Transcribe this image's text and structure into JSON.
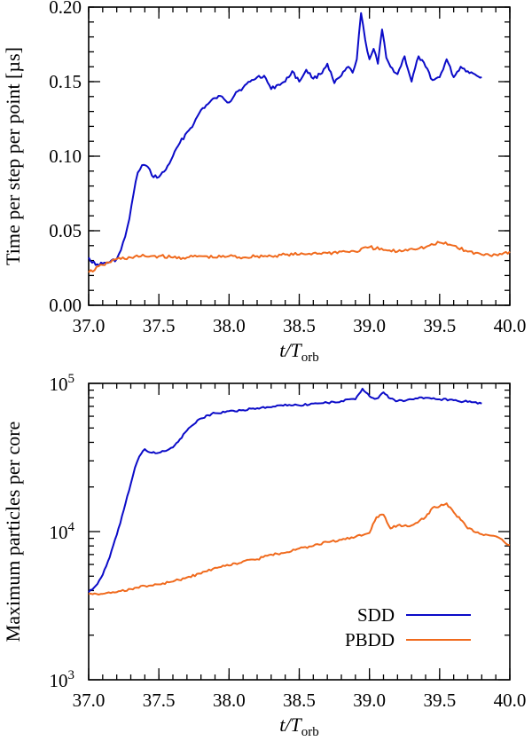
{
  "chart_data": [
    {
      "type": "line",
      "xlabel": {
        "main": "t/T",
        "sub": "orb"
      },
      "ylabel": "Time per step per point [µs]",
      "xlim": [
        37.0,
        40.0
      ],
      "ylim": [
        0.0,
        0.2
      ],
      "yscale": "linear",
      "xticks": [
        {
          "v": 37.0,
          "label": "37.0"
        },
        {
          "v": 37.5,
          "label": "37.5"
        },
        {
          "v": 38.0,
          "label": "38.0"
        },
        {
          "v": 38.5,
          "label": "38.5"
        },
        {
          "v": 39.0,
          "label": "39.0"
        },
        {
          "v": 39.5,
          "label": "39.5"
        },
        {
          "v": 40.0,
          "label": "40.0"
        }
      ],
      "yticks": [
        {
          "v": 0.0,
          "label": "0.00"
        },
        {
          "v": 0.05,
          "label": "0.05"
        },
        {
          "v": 0.1,
          "label": "0.10"
        },
        {
          "v": 0.15,
          "label": "0.15"
        },
        {
          "v": 0.2,
          "label": "0.20"
        }
      ],
      "series": [
        {
          "name": "SDD",
          "color": "#0b0bc8",
          "x": [
            37.0,
            37.05,
            37.1,
            37.15,
            37.2,
            37.23,
            37.26,
            37.29,
            37.32,
            37.35,
            37.38,
            37.42,
            37.45,
            37.5,
            37.55,
            37.6,
            37.65,
            37.7,
            37.75,
            37.8,
            37.85,
            37.9,
            37.95,
            38.0,
            38.05,
            38.1,
            38.15,
            38.2,
            38.25,
            38.3,
            38.35,
            38.4,
            38.45,
            38.5,
            38.55,
            38.6,
            38.65,
            38.7,
            38.75,
            38.8,
            38.85,
            38.88,
            38.91,
            38.94,
            38.97,
            39.0,
            39.03,
            39.06,
            39.09,
            39.12,
            39.15,
            39.2,
            39.25,
            39.3,
            39.35,
            39.4,
            39.45,
            39.5,
            39.55,
            39.6,
            39.65,
            39.7,
            39.75,
            39.8
          ],
          "y": [
            0.032,
            0.027,
            0.028,
            0.029,
            0.031,
            0.037,
            0.046,
            0.058,
            0.075,
            0.089,
            0.094,
            0.093,
            0.087,
            0.086,
            0.091,
            0.1,
            0.109,
            0.116,
            0.122,
            0.131,
            0.135,
            0.139,
            0.14,
            0.136,
            0.143,
            0.146,
            0.15,
            0.153,
            0.154,
            0.145,
            0.148,
            0.15,
            0.157,
            0.15,
            0.158,
            0.152,
            0.155,
            0.162,
            0.149,
            0.154,
            0.16,
            0.156,
            0.165,
            0.196,
            0.178,
            0.165,
            0.172,
            0.162,
            0.185,
            0.166,
            0.16,
            0.155,
            0.167,
            0.15,
            0.167,
            0.16,
            0.151,
            0.153,
            0.165,
            0.153,
            0.16,
            0.157,
            0.155,
            0.153
          ]
        },
        {
          "name": "PBDD",
          "color": "#f06a1d",
          "x": [
            37.0,
            37.1,
            37.2,
            37.3,
            37.4,
            37.5,
            37.6,
            37.7,
            37.8,
            37.9,
            38.0,
            38.1,
            38.2,
            38.3,
            38.4,
            38.5,
            38.6,
            38.7,
            38.8,
            38.9,
            39.0,
            39.1,
            39.2,
            39.3,
            39.4,
            39.5,
            39.6,
            39.7,
            39.8,
            39.9,
            40.0
          ],
          "y": [
            0.022,
            0.027,
            0.031,
            0.032,
            0.033,
            0.033,
            0.032,
            0.032,
            0.033,
            0.032,
            0.033,
            0.032,
            0.033,
            0.033,
            0.034,
            0.034,
            0.035,
            0.035,
            0.036,
            0.036,
            0.039,
            0.037,
            0.036,
            0.038,
            0.039,
            0.042,
            0.04,
            0.036,
            0.034,
            0.034,
            0.036
          ]
        }
      ]
    },
    {
      "type": "line",
      "xlabel": {
        "main": "t/T",
        "sub": "orb"
      },
      "ylabel": "Maximum particles per core",
      "xlim": [
        37.0,
        40.0
      ],
      "ylim": [
        1000,
        100000
      ],
      "yscale": "log",
      "xticks": [
        {
          "v": 37.0,
          "label": "37.0"
        },
        {
          "v": 37.5,
          "label": "37.5"
        },
        {
          "v": 38.0,
          "label": "38.0"
        },
        {
          "v": 38.5,
          "label": "38.5"
        },
        {
          "v": 39.0,
          "label": "39.0"
        },
        {
          "v": 39.5,
          "label": "39.5"
        },
        {
          "v": 40.0,
          "label": "40.0"
        }
      ],
      "yticks": [
        {
          "v": 1000,
          "base": "10",
          "exp": "3"
        },
        {
          "v": 10000,
          "base": "10",
          "exp": "4"
        },
        {
          "v": 100000,
          "base": "10",
          "exp": "5"
        }
      ],
      "legend": {
        "position": "bottom-right"
      },
      "series": [
        {
          "name": "SDD",
          "color": "#0b0bc8",
          "x": [
            37.0,
            37.05,
            37.1,
            37.15,
            37.2,
            37.25,
            37.3,
            37.33,
            37.36,
            37.4,
            37.45,
            37.5,
            37.55,
            37.6,
            37.65,
            37.7,
            37.75,
            37.8,
            37.85,
            37.9,
            38.0,
            38.1,
            38.2,
            38.3,
            38.4,
            38.5,
            38.6,
            38.7,
            38.8,
            38.9,
            38.95,
            39.0,
            39.05,
            39.1,
            39.15,
            39.2,
            39.3,
            39.4,
            39.5,
            39.6,
            39.7,
            39.8
          ],
          "y": [
            3900,
            4300,
            5100,
            6700,
            9500,
            14000,
            21000,
            27000,
            32000,
            36000,
            34000,
            34000,
            35000,
            37000,
            42000,
            48000,
            53000,
            58000,
            61000,
            63000,
            65000,
            66000,
            68000,
            69000,
            72000,
            71000,
            73000,
            74000,
            76000,
            78000,
            92000,
            82000,
            79000,
            87000,
            79000,
            76000,
            78000,
            80000,
            78000,
            77000,
            75000,
            73000
          ]
        },
        {
          "name": "PBDD",
          "color": "#f06a1d",
          "x": [
            37.0,
            37.1,
            37.2,
            37.3,
            37.4,
            37.5,
            37.6,
            37.7,
            37.8,
            37.9,
            38.0,
            38.1,
            38.2,
            38.3,
            38.4,
            38.5,
            38.6,
            38.7,
            38.8,
            38.9,
            39.0,
            39.05,
            39.1,
            39.15,
            39.2,
            39.3,
            39.4,
            39.45,
            39.5,
            39.55,
            39.6,
            39.65,
            39.7,
            39.8,
            39.9,
            40.0
          ],
          "y": [
            3800,
            3800,
            3900,
            4100,
            4300,
            4400,
            4600,
            4900,
            5200,
            5700,
            5900,
            6300,
            6500,
            7000,
            7200,
            7700,
            8000,
            8500,
            8800,
            9200,
            9800,
            12500,
            13000,
            10500,
            11000,
            11000,
            12500,
            14500,
            14800,
            15500,
            13500,
            12000,
            10500,
            9600,
            9300,
            8100
          ]
        }
      ]
    }
  ]
}
